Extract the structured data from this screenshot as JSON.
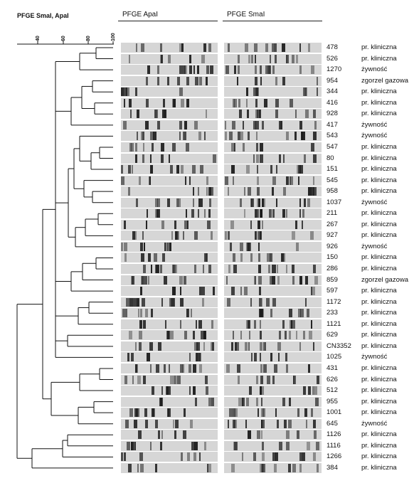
{
  "method_label": "PFGE SmaI, ApaI",
  "columns": {
    "apa": "PFGE ApaI",
    "sma": "PFGE SmaI"
  },
  "scale_ticks": [
    "40",
    "60",
    "80",
    "100"
  ],
  "rows": [
    {
      "id": "478",
      "source": "pr. kliniczna"
    },
    {
      "id": "526",
      "source": "pr. kliniczna"
    },
    {
      "id": "1270",
      "source": "żywność"
    },
    {
      "id": "954",
      "source": "zgorzel gazowa"
    },
    {
      "id": "344",
      "source": "pr. kliniczna"
    },
    {
      "id": "416",
      "source": "pr. kliniczna"
    },
    {
      "id": "928",
      "source": "pr. kliniczna"
    },
    {
      "id": "417",
      "source": "żywność"
    },
    {
      "id": "543",
      "source": "żywność"
    },
    {
      "id": "547",
      "source": "pr. kliniczna"
    },
    {
      "id": "80",
      "source": "pr. kliniczna"
    },
    {
      "id": "151",
      "source": "pr. kliniczna"
    },
    {
      "id": "545",
      "source": "pr. kliniczna"
    },
    {
      "id": "958",
      "source": "pr. kliniczna"
    },
    {
      "id": "1037",
      "source": "żywność"
    },
    {
      "id": "211",
      "source": "pr. kliniczna"
    },
    {
      "id": "267",
      "source": "pr. kliniczna"
    },
    {
      "id": "927",
      "source": "pr. kliniczna"
    },
    {
      "id": "926",
      "source": "żywność"
    },
    {
      "id": "150",
      "source": "pr. kliniczna"
    },
    {
      "id": "286",
      "source": "pr. kliniczna"
    },
    {
      "id": "859",
      "source": "zgorzel gazowa"
    },
    {
      "id": "597",
      "source": "pr. kliniczna"
    },
    {
      "id": "1172",
      "source": "pr. kliniczna"
    },
    {
      "id": "233",
      "source": "pr. kliniczna"
    },
    {
      "id": "1121",
      "source": "pr. kliniczna"
    },
    {
      "id": "629",
      "source": "pr. kliniczna"
    },
    {
      "id": "CN3352",
      "source": "pr. kliniczna"
    },
    {
      "id": "1025",
      "source": "żywność"
    },
    {
      "id": "431",
      "source": "pr. kliniczna"
    },
    {
      "id": "626",
      "source": "pr. kliniczna"
    },
    {
      "id": "512",
      "source": "pr. kliniczna"
    },
    {
      "id": "955",
      "source": "pr. kliniczna"
    },
    {
      "id": "1001",
      "source": "pr. kliniczna"
    },
    {
      "id": "645",
      "source": "żywność"
    },
    {
      "id": "1126",
      "source": "pr. kliniczna"
    },
    {
      "id": "1116",
      "source": "pr. kliniczna"
    },
    {
      "id": "1266",
      "source": "pr. kliniczna"
    },
    {
      "id": "384",
      "source": "pr. kliniczna"
    }
  ],
  "colors": {
    "ink": "#111111",
    "gel_bg": "#d6d6d6",
    "band": "#1a1a1a"
  }
}
